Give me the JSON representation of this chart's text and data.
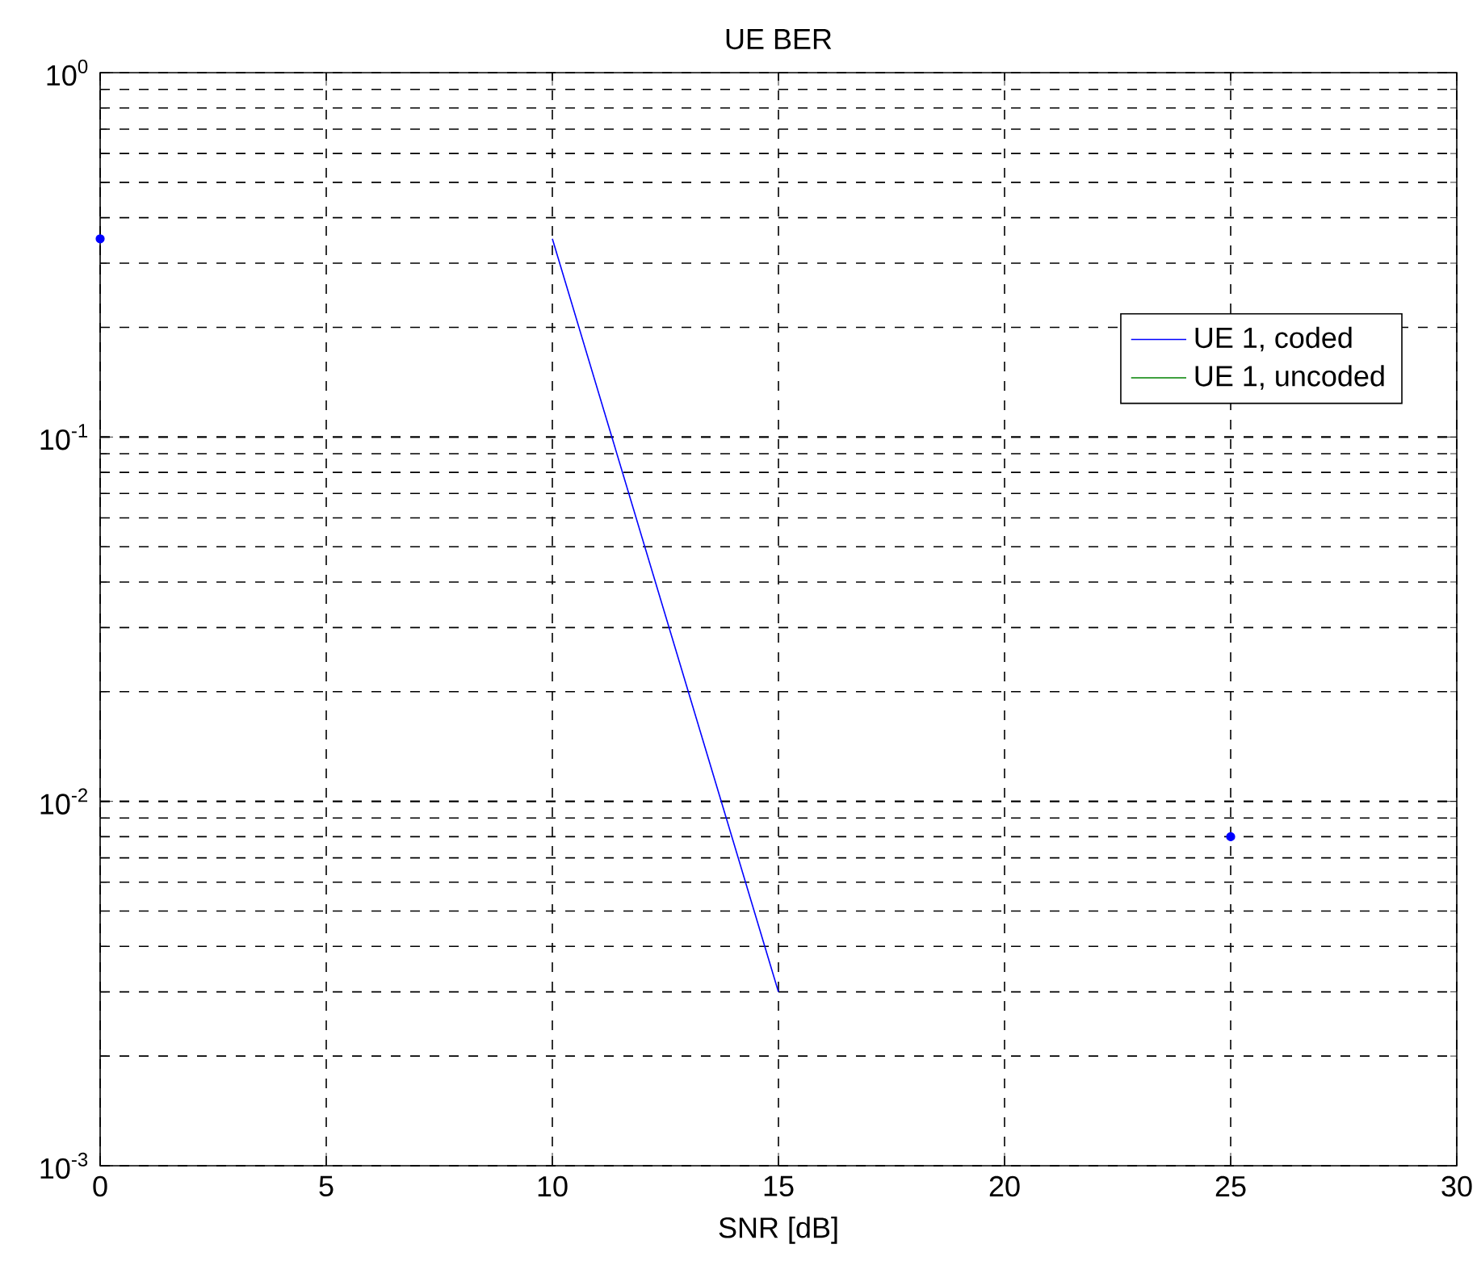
{
  "chart_data": {
    "type": "line",
    "title": "UE BER",
    "xlabel": "SNR [dB]",
    "x": [
      0,
      5,
      10,
      15,
      20,
      25
    ],
    "series": [
      {
        "name": "UE 1, coded",
        "color": "#0000ff",
        "values": [
          0.35,
          null,
          0.35,
          0.003,
          null,
          0.008
        ]
      },
      {
        "name": "UE 1, uncoded",
        "color": "#008000",
        "values": [
          null,
          null,
          null,
          null,
          null,
          null
        ]
      }
    ],
    "xlim": [
      0,
      30
    ],
    "xticks": [
      0,
      5,
      10,
      15,
      20,
      25,
      30
    ],
    "ylim": [
      0.001,
      1
    ],
    "yticks": [
      {
        "value": 0.001,
        "label": "10$^{-3}$"
      },
      {
        "value": 0.01,
        "label": "10$^{-2}$"
      },
      {
        "value": 0.1,
        "label": "10$^{-1}$"
      },
      {
        "value": 1,
        "label": "10$^{0}$"
      }
    ],
    "log": "y",
    "grid": true,
    "line_style": "solid",
    "legend": "top right"
  }
}
